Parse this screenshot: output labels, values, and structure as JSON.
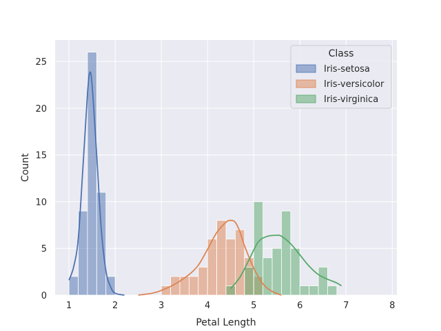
{
  "chart_data": {
    "type": "histogram",
    "xlabel": "Petal Length",
    "ylabel": "Count",
    "xlim": [
      0.7,
      8.1
    ],
    "ylim": [
      0,
      27.3
    ],
    "x_ticks": [
      "1",
      "2",
      "3",
      "4",
      "5",
      "6",
      "7",
      "8"
    ],
    "y_ticks": [
      "0",
      "5",
      "10",
      "15",
      "20",
      "25"
    ],
    "grid": true,
    "legend": {
      "title": "Class",
      "placement": "top-right"
    },
    "bin_width": 0.2,
    "series": [
      {
        "name": "Iris-setosa",
        "color": "#4c72b0",
        "bins": [
          [
            1.0,
            2
          ],
          [
            1.2,
            9
          ],
          [
            1.4,
            26
          ],
          [
            1.6,
            11
          ],
          [
            1.8,
            2
          ]
        ],
        "kde": [
          [
            1.0,
            1.6
          ],
          [
            1.1,
            3.0
          ],
          [
            1.2,
            6.0
          ],
          [
            1.3,
            13.5
          ],
          [
            1.4,
            21.5
          ],
          [
            1.45,
            23.8
          ],
          [
            1.5,
            22.5
          ],
          [
            1.6,
            15.0
          ],
          [
            1.7,
            7.0
          ],
          [
            1.8,
            2.6
          ],
          [
            1.9,
            0.9
          ],
          [
            2.0,
            0.2
          ],
          [
            2.2,
            0.0
          ]
        ]
      },
      {
        "name": "Iris-versicolor",
        "color": "#dd8452",
        "bins": [
          [
            3.0,
            1
          ],
          [
            3.2,
            2
          ],
          [
            3.4,
            2
          ],
          [
            3.6,
            2
          ],
          [
            3.8,
            3
          ],
          [
            4.0,
            6
          ],
          [
            4.2,
            8
          ],
          [
            4.4,
            6
          ],
          [
            4.6,
            7
          ],
          [
            4.8,
            4
          ],
          [
            5.0,
            2
          ],
          [
            5.2,
            0
          ]
        ],
        "kde": [
          [
            2.5,
            0.0
          ],
          [
            2.8,
            0.2
          ],
          [
            3.0,
            0.5
          ],
          [
            3.3,
            1.2
          ],
          [
            3.6,
            2.2
          ],
          [
            3.8,
            3.2
          ],
          [
            4.0,
            4.9
          ],
          [
            4.2,
            6.7
          ],
          [
            4.4,
            7.8
          ],
          [
            4.5,
            8.0
          ],
          [
            4.6,
            7.8
          ],
          [
            4.7,
            6.8
          ],
          [
            4.8,
            5.3
          ],
          [
            5.0,
            2.9
          ],
          [
            5.2,
            1.2
          ],
          [
            5.4,
            0.4
          ],
          [
            5.6,
            0.0
          ]
        ]
      },
      {
        "name": "Iris-virginica",
        "color": "#55a868",
        "bins": [
          [
            4.4,
            1
          ],
          [
            4.8,
            3
          ],
          [
            5.0,
            10
          ],
          [
            5.2,
            4
          ],
          [
            5.4,
            5
          ],
          [
            5.6,
            9
          ],
          [
            5.8,
            5
          ],
          [
            6.0,
            1
          ],
          [
            6.2,
            1
          ],
          [
            6.4,
            3
          ],
          [
            6.6,
            1
          ],
          [
            6.8,
            0
          ]
        ],
        "kde": [
          [
            4.5,
            0.7
          ],
          [
            4.7,
            1.9
          ],
          [
            4.9,
            3.8
          ],
          [
            5.1,
            5.7
          ],
          [
            5.3,
            6.3
          ],
          [
            5.5,
            6.4
          ],
          [
            5.6,
            6.3
          ],
          [
            5.8,
            5.5
          ],
          [
            6.0,
            4.3
          ],
          [
            6.2,
            3.1
          ],
          [
            6.4,
            2.2
          ],
          [
            6.6,
            1.7
          ],
          [
            6.8,
            1.3
          ],
          [
            6.9,
            1.0
          ]
        ]
      }
    ]
  }
}
